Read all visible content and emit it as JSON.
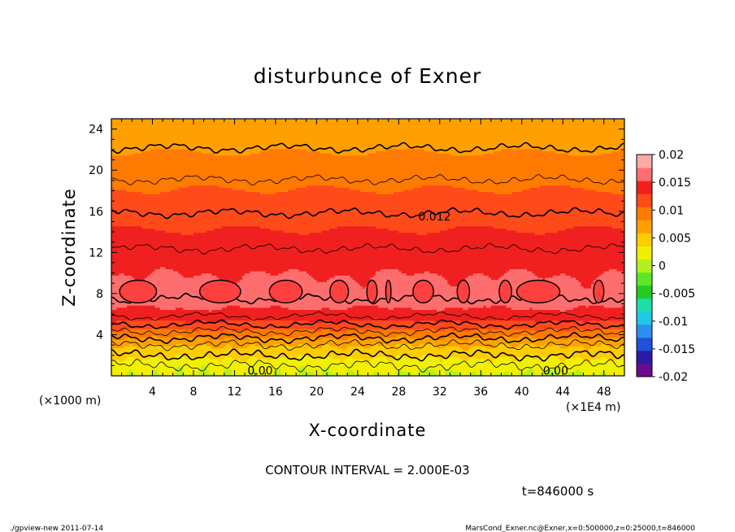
{
  "chart_data": {
    "type": "heatmap",
    "title": "disturbunce of Exner",
    "xlabel": "X-coordinate",
    "ylabel": "Z-coordinate",
    "x_unit_note": "(×1E4 m)",
    "y_unit_note": "(×1000 m)",
    "x_ticks": [
      4,
      8,
      12,
      16,
      20,
      24,
      28,
      32,
      36,
      40,
      44,
      48
    ],
    "y_ticks": [
      4,
      8,
      12,
      16,
      20,
      24
    ],
    "xlim": [
      0,
      50
    ],
    "ylim": [
      0,
      25
    ],
    "colorbar_ticks": [
      "0.02",
      "0.015",
      "0.01",
      "0.005",
      "0",
      "-0.005",
      "-0.01",
      "-0.015",
      "-0.02"
    ],
    "colorbar_range": [
      -0.02,
      0.02
    ],
    "contour_interval": 0.002,
    "contour_labels": [
      {
        "text": "0.012",
        "x": 31.5,
        "y": 15.5
      },
      {
        "text": "0.00",
        "x": 14.5,
        "y": 0.5
      },
      {
        "text": "0.00",
        "x": 43.3,
        "y": 0.5
      }
    ],
    "vertical_profile": [
      {
        "z": 0,
        "v": 0.001
      },
      {
        "z": 1,
        "v": 0.002
      },
      {
        "z": 2,
        "v": 0.004
      },
      {
        "z": 3,
        "v": 0.006
      },
      {
        "z": 4,
        "v": 0.009
      },
      {
        "z": 5,
        "v": 0.012
      },
      {
        "z": 6,
        "v": 0.0145
      },
      {
        "z": 7,
        "v": 0.0158
      },
      {
        "z": 8,
        "v": 0.0162
      },
      {
        "z": 9,
        "v": 0.0158
      },
      {
        "z": 10,
        "v": 0.0152
      },
      {
        "z": 12,
        "v": 0.0142
      },
      {
        "z": 14,
        "v": 0.0131
      },
      {
        "z": 16,
        "v": 0.0119
      },
      {
        "z": 18,
        "v": 0.0107
      },
      {
        "z": 20,
        "v": 0.0094
      },
      {
        "z": 22,
        "v": 0.0081
      },
      {
        "z": 24,
        "v": 0.0068
      },
      {
        "z": 25,
        "v": 0.0062
      }
    ]
  },
  "colors": {
    "colorbar": [
      "#6a0a8c",
      "#2a1aa8",
      "#1f52d8",
      "#2b8ff0",
      "#22c8e8",
      "#1ae0a8",
      "#22cc22",
      "#5fe62a",
      "#b5f01e",
      "#f0f000",
      "#ffcc00",
      "#ffa000",
      "#ff7a00",
      "#ff4a1a",
      "#f02020",
      "#ff6e6e",
      "#ffa8a8"
    ]
  },
  "contour_interval_text": "CONTOUR INTERVAL = 2.000E-03",
  "time_text": "t=846000 s",
  "footer_left": "./gpview-new   2011-07-14",
  "footer_right": "MarsCond_Exner.nc@Exner,x=0:500000,z=0:25000,t=846000"
}
